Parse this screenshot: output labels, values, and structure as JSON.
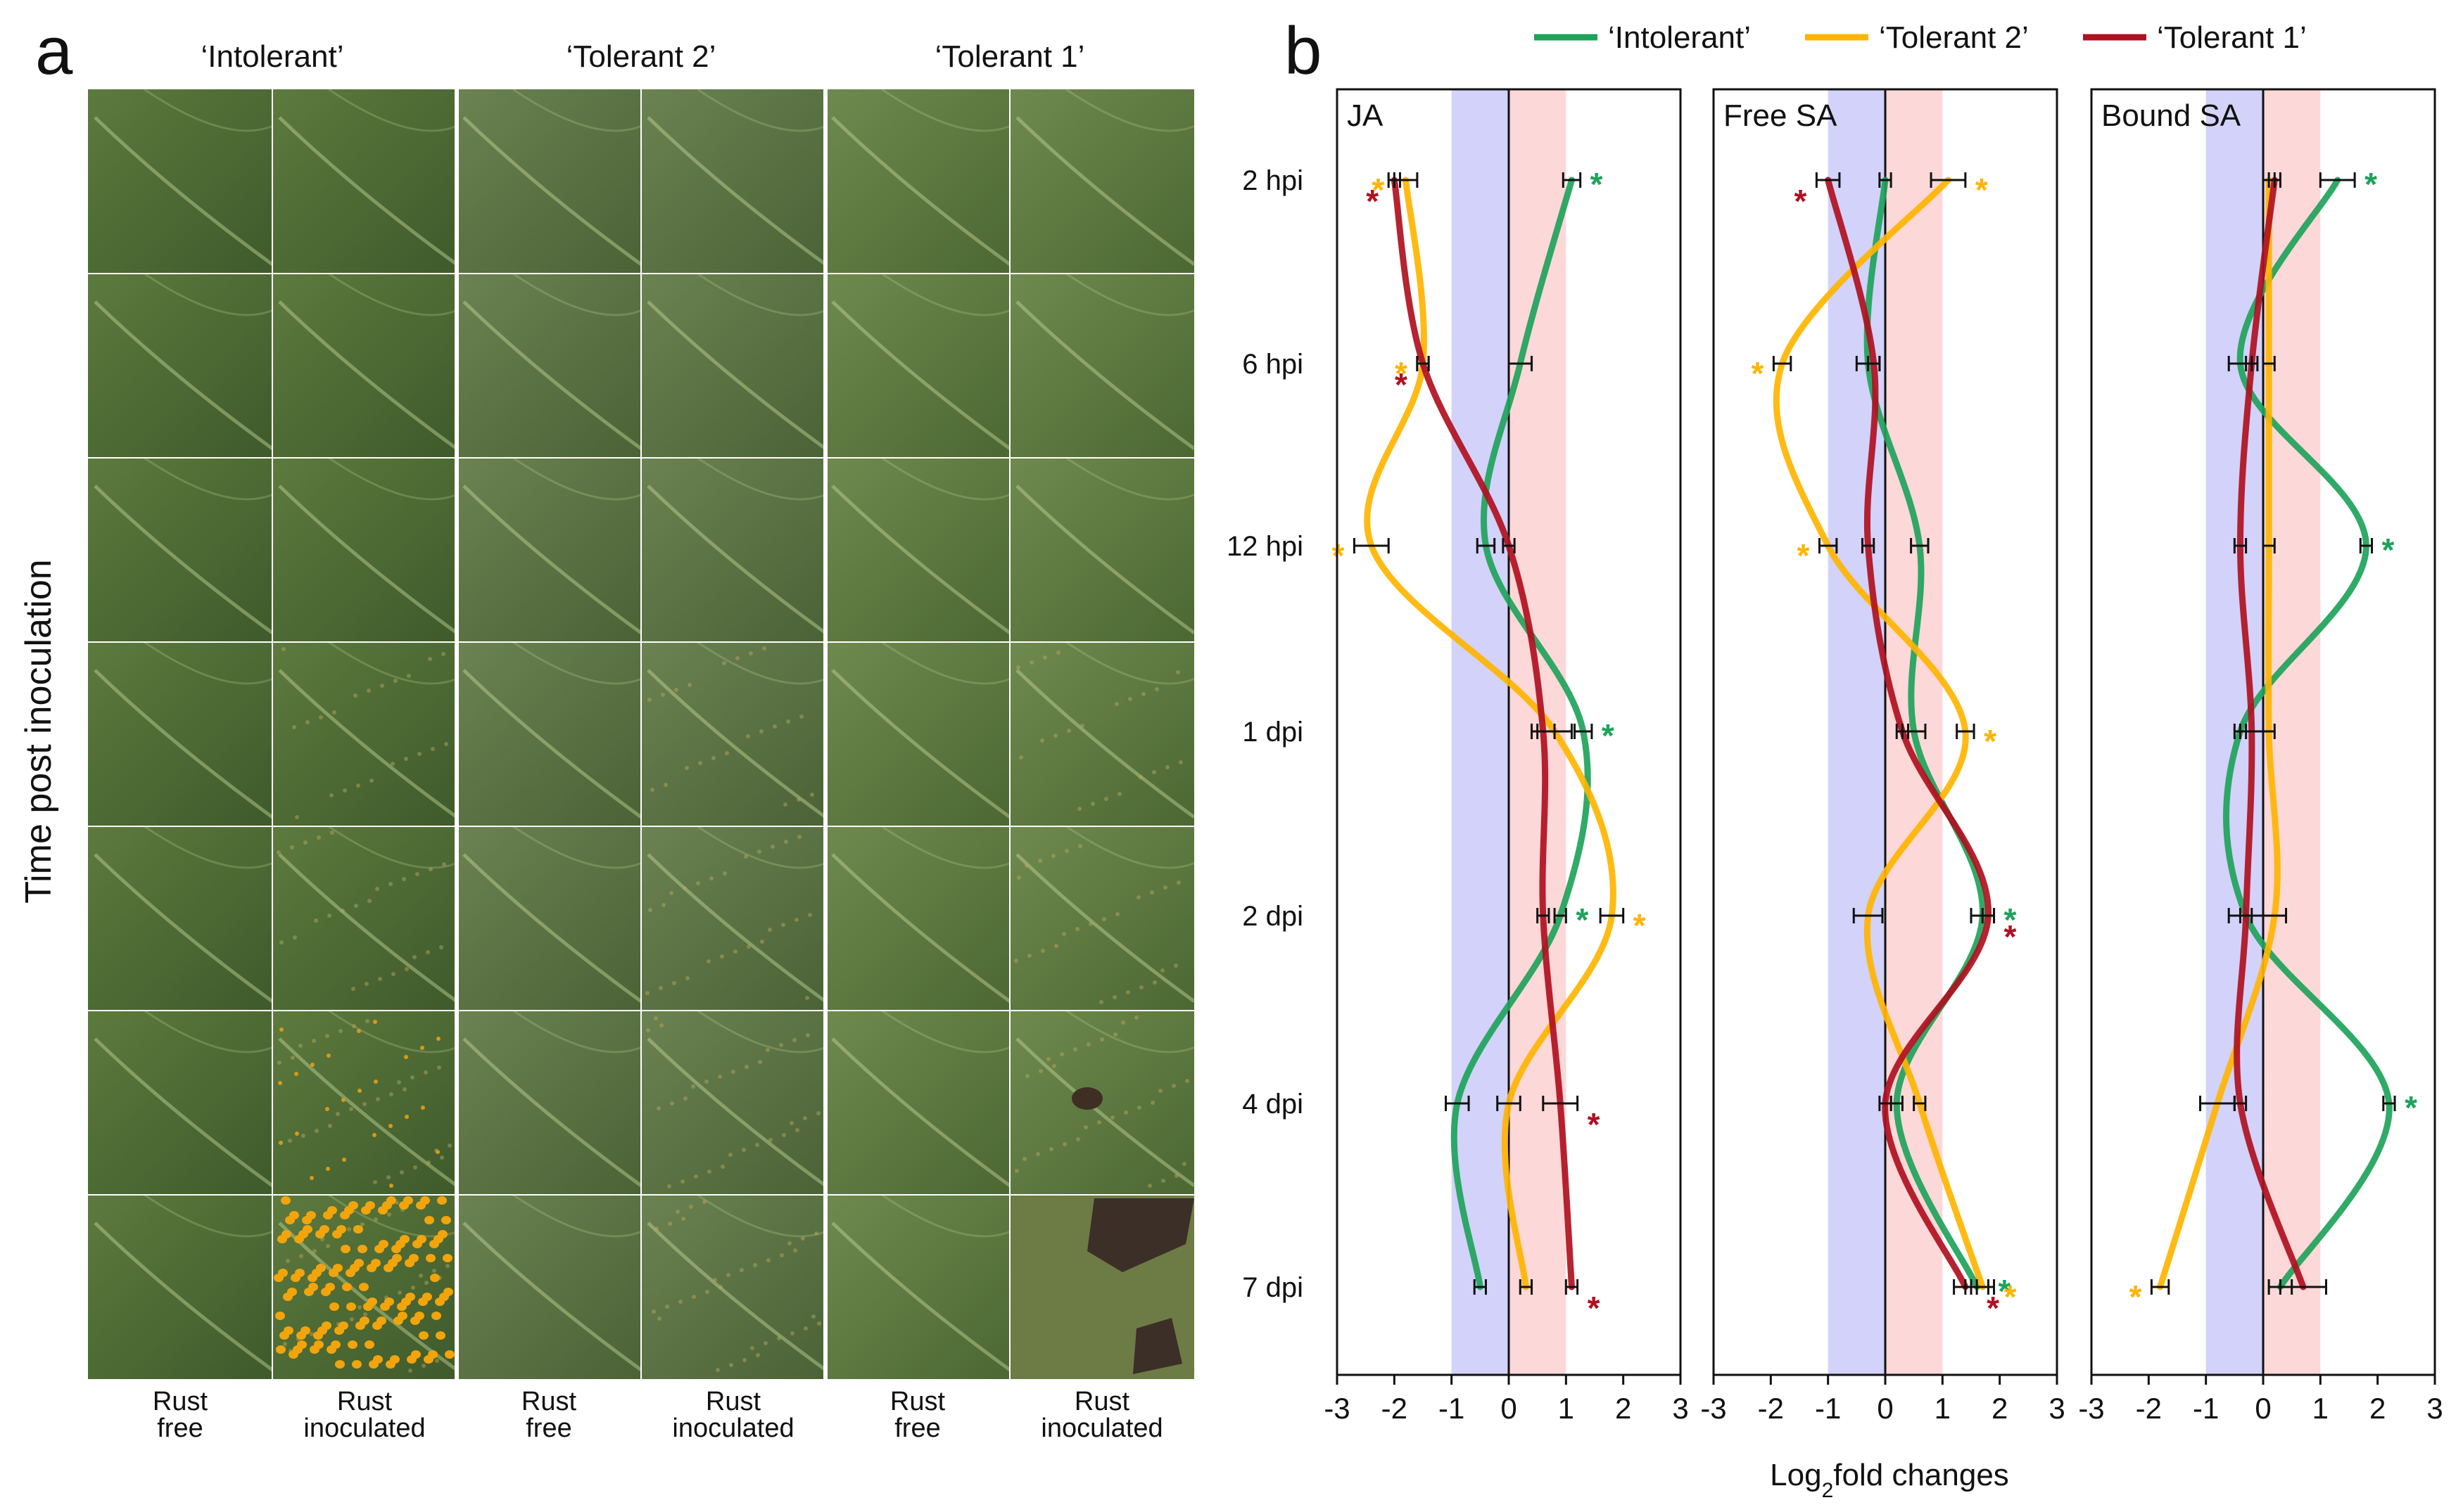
{
  "panel_a": {
    "label": "a",
    "ylabel": "Time post inoculation",
    "col_titles": [
      "‘Intolerant’",
      "‘Tolerant 2’",
      "‘Tolerant 1’"
    ],
    "bottom_labels": [
      [
        "Rust",
        "free"
      ],
      [
        "Rust",
        "inoculated"
      ],
      [
        "Rust",
        "free"
      ],
      [
        "Rust",
        "inoculated"
      ],
      [
        "Rust",
        "free"
      ],
      [
        "Rust",
        "inoculated"
      ]
    ]
  },
  "panel_b": {
    "label": "b",
    "xlabel_main": "Log",
    "xlabel_sub": "2",
    "xlabel_rest": "fold changes"
  },
  "colors": {
    "Intolerant": "#1ea35a",
    "Tolerant 2": "#ffb400",
    "Tolerant 1": "#b01020",
    "blue_band": "#d2d2fa",
    "red_band": "#fdd8d8"
  },
  "chart_data": [
    {
      "type": "line",
      "title": "JA",
      "xlabel": "Log2fold changes",
      "xlim": [
        -3,
        3
      ],
      "xticks": [
        "-3",
        "-2",
        "-1",
        "0",
        "1",
        "2",
        "3"
      ],
      "categories": [
        "2 hpi",
        "6 hpi",
        "12 hpi",
        "1 dpi",
        "2 dpi",
        "4 dpi",
        "7 dpi"
      ],
      "reference_bands": [
        [
          -1,
          0
        ],
        [
          0,
          1
        ]
      ],
      "series": [
        {
          "name": "‘Intolerant’",
          "values": [
            1.1,
            0.2,
            -0.4,
            1.3,
            0.9,
            -0.9,
            -0.5
          ],
          "errors": [
            0.15,
            0.2,
            0.15,
            0.15,
            0.1,
            0.2,
            0.1
          ],
          "sig": [
            true,
            false,
            false,
            true,
            true,
            false,
            false
          ]
        },
        {
          "name": "‘Tolerant 2’",
          "values": [
            -1.8,
            -1.5,
            -2.4,
            0.8,
            1.8,
            0.0,
            0.3
          ],
          "errors": [
            0.2,
            0.1,
            0.3,
            0.3,
            0.2,
            0.2,
            0.1
          ],
          "sig": [
            true,
            true,
            true,
            false,
            true,
            false,
            false
          ]
        },
        {
          "name": "‘Tolerant 1’",
          "values": [
            -2.0,
            -1.5,
            0.0,
            0.6,
            0.6,
            0.9,
            1.1
          ],
          "errors": [
            0.1,
            0.1,
            0.1,
            0.2,
            0.1,
            0.3,
            0.1
          ],
          "sig": [
            true,
            true,
            false,
            false,
            false,
            true,
            true
          ]
        }
      ]
    },
    {
      "type": "line",
      "title": "Free SA",
      "xlabel": "Log2fold changes",
      "xlim": [
        -3,
        3
      ],
      "xticks": [
        "-3",
        "-2",
        "-1",
        "0",
        "1",
        "2",
        "3"
      ],
      "categories": [
        "2 hpi",
        "6 hpi",
        "12 hpi",
        "1 dpi",
        "2 dpi",
        "4 dpi",
        "7 dpi"
      ],
      "reference_bands": [
        [
          -1,
          0
        ],
        [
          0,
          1
        ]
      ],
      "series": [
        {
          "name": "‘Intolerant’",
          "values": [
            0.0,
            -0.3,
            0.6,
            0.5,
            1.7,
            0.2,
            1.6
          ],
          "errors": [
            0.1,
            0.2,
            0.15,
            0.2,
            0.2,
            0.1,
            0.2
          ],
          "sig": [
            false,
            false,
            false,
            false,
            true,
            false,
            true
          ]
        },
        {
          "name": "‘Tolerant 2’",
          "values": [
            1.1,
            -1.8,
            -1.0,
            1.4,
            -0.3,
            0.6,
            1.7
          ],
          "errors": [
            0.3,
            0.15,
            0.15,
            0.15,
            0.25,
            0.1,
            0.2
          ],
          "sig": [
            true,
            true,
            true,
            true,
            false,
            false,
            true
          ]
        },
        {
          "name": "‘Tolerant 1’",
          "values": [
            -1.0,
            -0.2,
            -0.3,
            0.3,
            1.8,
            0.0,
            1.4
          ],
          "errors": [
            0.2,
            0.1,
            0.1,
            0.1,
            0.1,
            0.1,
            0.2
          ],
          "sig": [
            true,
            false,
            false,
            false,
            true,
            false,
            true
          ]
        }
      ]
    },
    {
      "type": "line",
      "title": "Bound SA",
      "xlabel": "Log2fold changes",
      "xlim": [
        -3,
        3
      ],
      "xticks": [
        "-3",
        "-2",
        "-1",
        "0",
        "1",
        "2",
        "3"
      ],
      "categories": [
        "2 hpi",
        "6 hpi",
        "12 hpi",
        "1 dpi",
        "2 dpi",
        "4 dpi",
        "7 dpi"
      ],
      "reference_bands": [
        [
          -1,
          0
        ],
        [
          0,
          1
        ]
      ],
      "series": [
        {
          "name": "‘Intolerant’",
          "values": [
            1.3,
            -0.4,
            1.8,
            -0.4,
            -0.3,
            2.2,
            0.3
          ],
          "errors": [
            0.3,
            0.2,
            0.1,
            0.1,
            0.1,
            0.1,
            0.2
          ],
          "sig": [
            true,
            false,
            true,
            false,
            false,
            true,
            false
          ]
        },
        {
          "name": "‘Tolerant 2’",
          "values": [
            0.1,
            0.1,
            0.1,
            0.1,
            0.2,
            -0.8,
            -1.8
          ],
          "errors": [
            0.1,
            0.1,
            0.1,
            0.1,
            0.2,
            0.3,
            0.15
          ],
          "sig": [
            false,
            false,
            false,
            false,
            false,
            false,
            true
          ]
        },
        {
          "name": "‘Tolerant 1’",
          "values": [
            0.2,
            -0.2,
            -0.4,
            -0.2,
            -0.3,
            -0.4,
            0.7
          ],
          "errors": [
            0.1,
            0.1,
            0.1,
            0.2,
            0.3,
            0.1,
            0.4
          ],
          "sig": [
            false,
            false,
            false,
            false,
            false,
            false,
            false
          ]
        }
      ]
    }
  ]
}
